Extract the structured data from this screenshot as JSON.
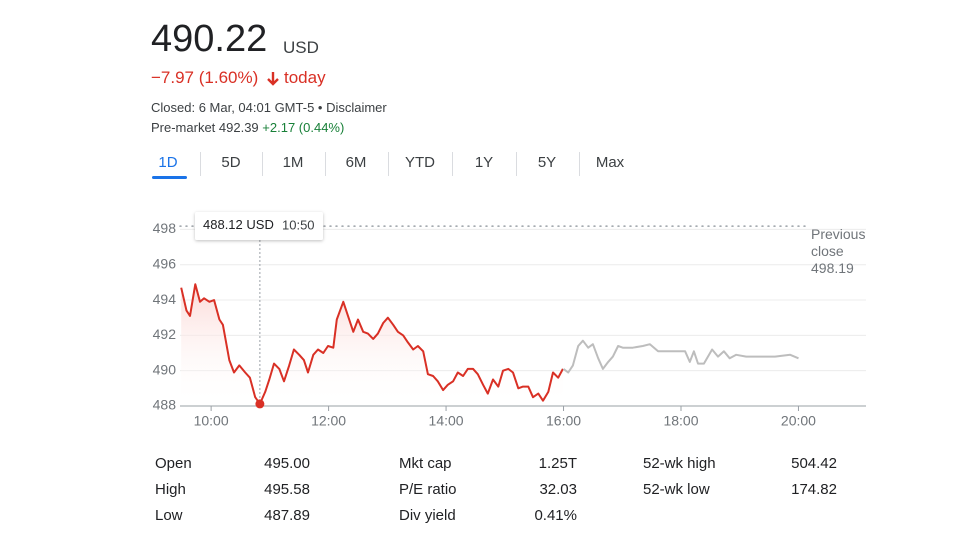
{
  "header": {
    "price": 490.22,
    "currency": "USD",
    "change": "−7.97 (1.60%)",
    "change_period": "today",
    "closed": "Closed: 6 Mar, 04:01 GMT-5 • Disclaimer",
    "premarket_label": "Pre-market 492.39",
    "premarket_change": "+2.17 (0.44%)"
  },
  "tabs": [
    "1D",
    "5D",
    "1M",
    "6M",
    "YTD",
    "1Y",
    "5Y",
    "Max"
  ],
  "chart_data": {
    "type": "line",
    "xlim": [
      9.47,
      21.15
    ],
    "ylim": [
      488,
      499.1
    ],
    "xticks": [
      {
        "value": 10,
        "label": "10:00"
      },
      {
        "value": 12,
        "label": "12:00"
      },
      {
        "value": 14,
        "label": "14:00"
      },
      {
        "value": 16,
        "label": "16:00"
      },
      {
        "value": 18,
        "label": "18:00"
      },
      {
        "value": 20,
        "label": "20:00"
      }
    ],
    "yticks": [
      488,
      490,
      492,
      494,
      496,
      498
    ],
    "grid": true,
    "series": [
      {
        "color": "#d93025",
        "x": [
          9.49,
          9.58,
          9.64,
          9.73,
          9.81,
          9.88,
          9.97,
          10.05,
          10.14,
          10.2,
          10.31,
          10.39,
          10.48,
          10.58,
          10.66,
          10.75,
          10.83,
          10.92,
          10.99,
          11.07,
          11.16,
          11.24,
          11.33,
          11.41,
          11.5,
          11.58,
          11.65,
          11.74,
          11.82,
          11.91,
          11.99,
          12.08,
          12.14,
          12.25,
          12.33,
          12.42,
          12.5,
          12.59,
          12.67,
          12.76,
          12.84,
          12.93,
          13.01,
          13.1,
          13.18,
          13.27,
          13.35,
          13.44,
          13.52,
          13.61,
          13.69,
          13.78,
          13.86,
          13.95,
          14.03,
          14.12,
          14.2,
          14.29,
          14.37,
          14.46,
          14.54,
          14.63,
          14.71,
          14.8,
          14.89,
          14.97,
          15.06,
          15.14,
          15.23,
          15.31,
          15.4,
          15.48,
          15.57,
          15.65,
          15.74,
          15.82,
          15.91,
          15.99
        ],
        "values": [
          494.7,
          493.4,
          493.1,
          494.9,
          493.9,
          494.1,
          493.9,
          494.0,
          492.9,
          492.6,
          490.6,
          489.9,
          490.3,
          489.9,
          489.6,
          488.5,
          488.12,
          488.8,
          489.5,
          490.4,
          490.1,
          489.4,
          490.3,
          491.2,
          490.9,
          490.6,
          489.9,
          490.9,
          491.2,
          491.0,
          491.4,
          491.3,
          492.9,
          493.9,
          493.1,
          492.2,
          492.9,
          492.2,
          492.1,
          491.8,
          492.1,
          492.7,
          493.0,
          492.6,
          492.2,
          492.0,
          491.6,
          491.2,
          491.4,
          491.1,
          489.8,
          489.7,
          489.4,
          488.9,
          489.2,
          489.4,
          489.9,
          489.7,
          490.1,
          490.1,
          489.8,
          489.2,
          488.7,
          489.5,
          489.1,
          490.0,
          490.1,
          489.9,
          489.0,
          489.1,
          489.1,
          488.5,
          488.7,
          488.3,
          488.8,
          489.9,
          489.6,
          490.1
        ]
      },
      {
        "color": "#bdbdbd",
        "x": [
          16.0,
          16.08,
          16.16,
          16.25,
          16.33,
          16.42,
          16.5,
          16.59,
          16.67,
          16.76,
          16.84,
          16.93,
          17.01,
          17.18,
          17.35,
          17.47,
          17.61,
          17.78,
          17.95,
          18.07,
          18.15,
          18.22,
          18.29,
          18.39,
          18.53,
          18.63,
          18.73,
          18.83,
          18.94,
          19.11,
          19.34,
          19.6,
          19.86,
          20.0
        ],
        "values": [
          490.1,
          489.9,
          490.3,
          491.4,
          491.7,
          491.3,
          491.5,
          490.7,
          490.1,
          490.5,
          490.8,
          491.4,
          491.3,
          491.3,
          491.4,
          491.5,
          491.1,
          491.1,
          491.1,
          491.1,
          490.5,
          491.1,
          490.4,
          490.4,
          491.2,
          490.8,
          491.1,
          490.7,
          490.9,
          490.8,
          490.8,
          490.8,
          490.9,
          490.7
        ]
      }
    ],
    "previous_close": {
      "label": "Previous close",
      "value": 498.19
    },
    "hover": {
      "x": {
        "value": 10.83,
        "label": "10:50"
      },
      "y": 488.12,
      "unit": "USD"
    }
  },
  "stats": {
    "rows": [
      [
        [
          "Open",
          "495.00"
        ],
        [
          "Mkt cap",
          "1.25T"
        ],
        [
          "52-wk high",
          "504.42"
        ]
      ],
      [
        [
          "High",
          "495.58"
        ],
        [
          "P/E ratio",
          "32.03"
        ],
        [
          "52-wk low",
          "174.82"
        ]
      ],
      [
        [
          "Low",
          "487.89"
        ],
        [
          "Div yield",
          "0.41%"
        ]
      ]
    ]
  }
}
